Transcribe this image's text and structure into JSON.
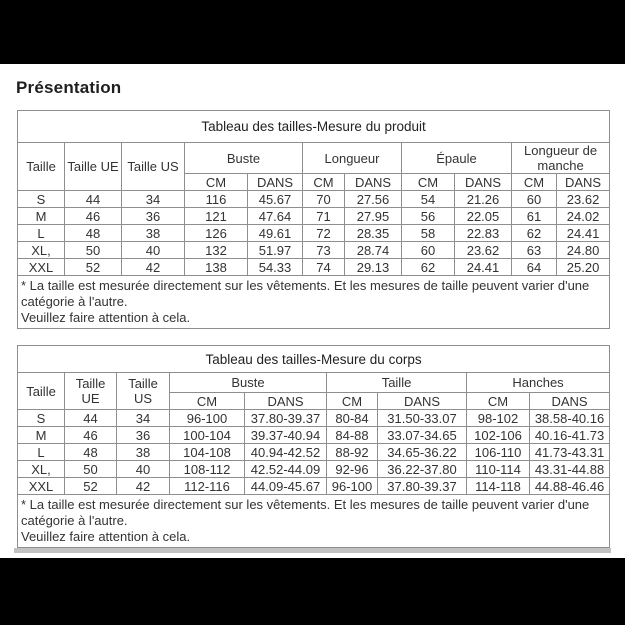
{
  "page": {
    "heading": "Présentation"
  },
  "product_table": {
    "title": "Tableau des tailles-Mesure du produit",
    "col_size": "Taille",
    "col_eu": "Taille UE",
    "col_us": "Taille US",
    "groups": [
      "Buste",
      "Longueur",
      "Épaule",
      "Longueur de manche"
    ],
    "unit_cm": "CM",
    "unit_in": "DANS",
    "rows": [
      [
        "S",
        "44",
        "34",
        "116",
        "45.67",
        "70",
        "27.56",
        "54",
        "21.26",
        "60",
        "23.62"
      ],
      [
        "M",
        "46",
        "36",
        "121",
        "47.64",
        "71",
        "27.95",
        "56",
        "22.05",
        "61",
        "24.02"
      ],
      [
        "L",
        "48",
        "38",
        "126",
        "49.61",
        "72",
        "28.35",
        "58",
        "22.83",
        "62",
        "24.41"
      ],
      [
        "XL,",
        "50",
        "40",
        "132",
        "51.97",
        "73",
        "28.74",
        "60",
        "23.62",
        "63",
        "24.80"
      ],
      [
        "XXL",
        "52",
        "42",
        "138",
        "54.33",
        "74",
        "29.13",
        "62",
        "24.41",
        "64",
        "25.20"
      ]
    ],
    "footnote_1": "* La taille est mesurée directement sur les vêtements. Et les mesures de taille peuvent varier d'une catégorie à l'autre.",
    "footnote_2": "Veuillez faire attention à cela."
  },
  "body_table": {
    "title": "Tableau des tailles-Mesure du corps",
    "col_size": "Taille",
    "col_eu": "Taille UE",
    "col_us": "Taille US",
    "groups": [
      "Buste",
      "Taille",
      "Hanches"
    ],
    "unit_cm": "CM",
    "unit_in": "DANS",
    "rows": [
      [
        "S",
        "44",
        "34",
        "96-100",
        "37.80-39.37",
        "80-84",
        "31.50-33.07",
        "98-102",
        "38.58-40.16"
      ],
      [
        "M",
        "46",
        "36",
        "100-104",
        "39.37-40.94",
        "84-88",
        "33.07-34.65",
        "102-106",
        "40.16-41.73"
      ],
      [
        "L",
        "48",
        "38",
        "104-108",
        "40.94-42.52",
        "88-92",
        "34.65-36.22",
        "106-110",
        "41.73-43.31"
      ],
      [
        "XL,",
        "50",
        "40",
        "108-112",
        "42.52-44.09",
        "92-96",
        "36.22-37.80",
        "110-114",
        "43.31-44.88"
      ],
      [
        "XXL",
        "52",
        "42",
        "112-116",
        "44.09-45.67",
        "96-100",
        "37.80-39.37",
        "114-118",
        "44.88-46.46"
      ]
    ],
    "footnote_1": "* La taille est mesurée directement sur les vêtements. Et les mesures de taille peuvent varier d'une catégorie à l'autre.",
    "footnote_2": "Veuillez faire attention à cela."
  },
  "colors": {
    "letterbox": "#000000",
    "table_border": "#8e8e8e",
    "text": "#333333",
    "scroll_strip": "#c2c2c2"
  }
}
